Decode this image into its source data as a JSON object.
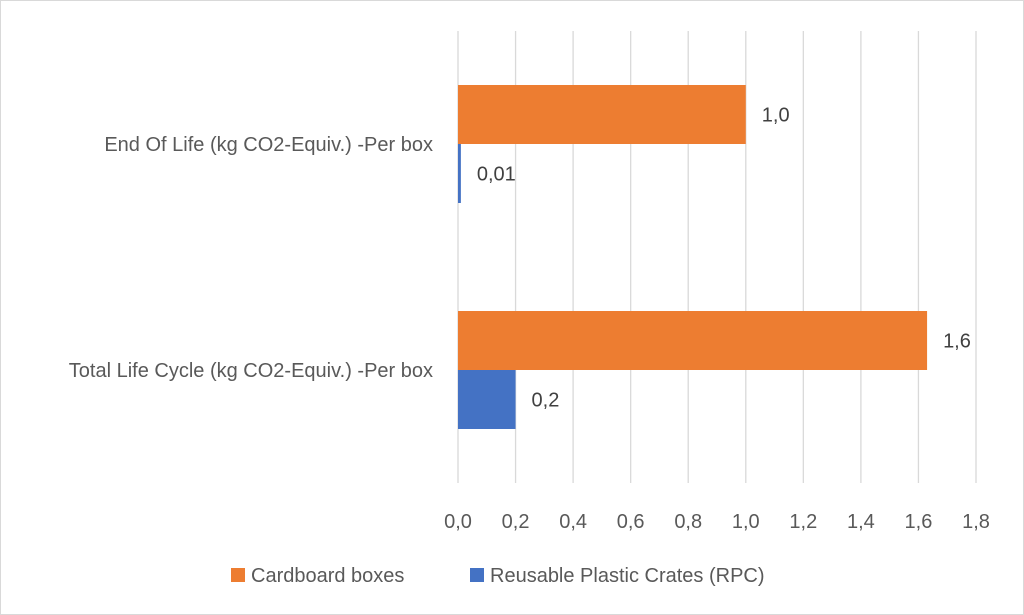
{
  "chart_data": {
    "type": "bar",
    "orientation": "horizontal",
    "categories": [
      "End Of Life  (kg CO2-Equiv.) -Per box",
      "Total Life Cycle (kg CO2-Equiv.) -Per box"
    ],
    "series": [
      {
        "name": "Cardboard boxes",
        "color": "#ED7D31",
        "values": [
          1.0,
          1.63
        ],
        "labels": [
          "1,0",
          "1,6"
        ]
      },
      {
        "name": "Reusable Plastic Crates (RPC)",
        "color": "#4472C4",
        "values": [
          0.01,
          0.2
        ],
        "labels": [
          "0,01",
          "0,2"
        ]
      }
    ],
    "xlim": [
      0,
      1.8
    ],
    "xticks": [
      "0,0",
      "0,2",
      "0,4",
      "0,6",
      "0,8",
      "1,0",
      "1,2",
      "1,4",
      "1,6",
      "1,8"
    ],
    "grid": "vertical",
    "legend": "bottom",
    "title": "",
    "xlabel": "",
    "ylabel": ""
  }
}
